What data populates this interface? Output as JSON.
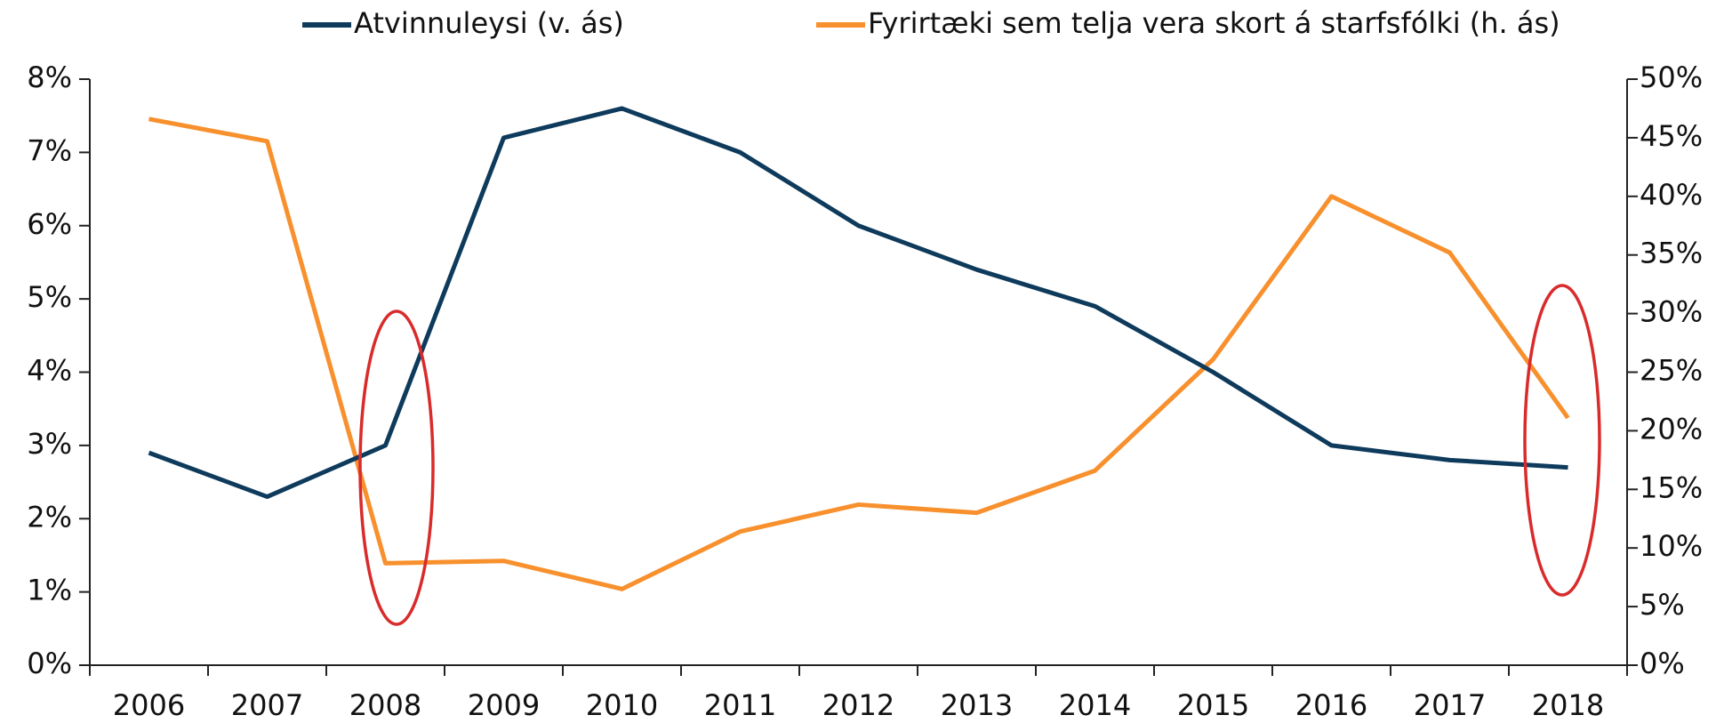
{
  "chart_data": {
    "type": "line",
    "categories": [
      "2006",
      "2007",
      "2008",
      "2009",
      "2010",
      "2011",
      "2012",
      "2013",
      "2014",
      "2015",
      "2016",
      "2017",
      "2018"
    ],
    "series": [
      {
        "name": "Atvinnuleysi (v. ás)",
        "color": "#0e3a5c",
        "axis": "y",
        "values": [
          2.9,
          2.3,
          3.0,
          7.2,
          7.6,
          7.0,
          6.0,
          5.4,
          4.9,
          4.0,
          3.0,
          2.8,
          2.7
        ]
      },
      {
        "name": "Fyrirtæki sem telja vera skort á starfsfólki (h. ás)",
        "color": "#f7902d",
        "axis": "y2",
        "values": [
          46.6,
          44.7,
          8.7,
          8.9,
          6.5,
          11.4,
          13.7,
          13.0,
          16.6,
          26.1,
          40.0,
          35.2,
          21.1
        ]
      }
    ],
    "ylim": [
      0,
      8
    ],
    "yticks": [
      {
        "value": 0,
        "label": "0%"
      },
      {
        "value": 1,
        "label": "1%"
      },
      {
        "value": 2,
        "label": "2%"
      },
      {
        "value": 3,
        "label": "3%"
      },
      {
        "value": 4,
        "label": "4%"
      },
      {
        "value": 5,
        "label": "5%"
      },
      {
        "value": 6,
        "label": "6%"
      },
      {
        "value": 7,
        "label": "7%"
      },
      {
        "value": 8,
        "label": "8%"
      }
    ],
    "y2lim": [
      0,
      50
    ],
    "y2ticks": [
      {
        "value": 0,
        "label": "0%"
      },
      {
        "value": 5,
        "label": "5%"
      },
      {
        "value": 10,
        "label": "10%"
      },
      {
        "value": 15,
        "label": "15%"
      },
      {
        "value": 20,
        "label": "20%"
      },
      {
        "value": 25,
        "label": "25%"
      },
      {
        "value": 30,
        "label": "30%"
      },
      {
        "value": 35,
        "label": "35%"
      },
      {
        "value": 40,
        "label": "40%"
      },
      {
        "value": 45,
        "label": "45%"
      },
      {
        "value": 50,
        "label": "50%"
      }
    ],
    "legend": "top"
  }
}
